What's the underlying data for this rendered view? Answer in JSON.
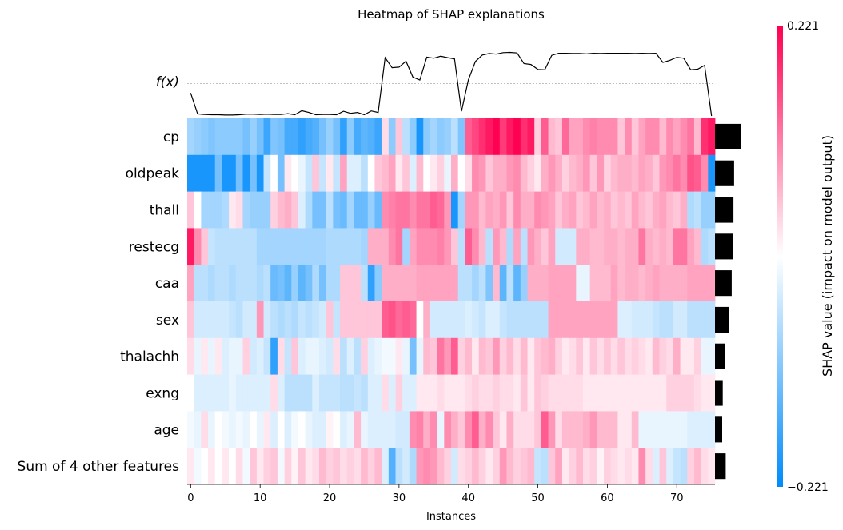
{
  "chart_data": {
    "type": "heatmap",
    "title": "Heatmap of SHAP explanations",
    "xlabel": "Instances",
    "fx_label": "f(x)",
    "colorbar_label": "SHAP value (impact on model output)",
    "colorbar_range": [
      -0.221,
      0.221
    ],
    "colorbar_max_label": "0.221",
    "colorbar_min_label": "−0.221",
    "colors": {
      "negative": "#008bfb",
      "positive": "#ff0051",
      "neutral": "#ffffff"
    },
    "n_instances": 76,
    "x_ticks": [
      0,
      10,
      20,
      30,
      40,
      50,
      60,
      70
    ],
    "features": [
      "cp",
      "oldpeak",
      "thall",
      "restecg",
      "caa",
      "sex",
      "thalachh",
      "exng",
      "age",
      "Sum of 4 other features"
    ],
    "feature_importance": [
      0.221,
      0.16,
      0.155,
      0.15,
      0.14,
      0.115,
      0.085,
      0.065,
      0.06,
      0.09
    ],
    "fx": [
      0.78,
      0.07,
      0.05,
      0.04,
      0.04,
      0.03,
      0.03,
      0.04,
      0.06,
      0.06,
      0.05,
      0.06,
      0.05,
      0.05,
      0.08,
      0.04,
      0.18,
      0.12,
      0.04,
      0.05,
      0.05,
      0.04,
      0.16,
      0.09,
      0.12,
      0.04,
      0.17,
      0.12,
      1.98,
      1.64,
      1.66,
      1.86,
      1.32,
      1.22,
      2.0,
      1.96,
      2.03,
      1.98,
      1.94,
      0.16,
      1.23,
      1.85,
      2.07,
      2.12,
      2.1,
      2.15,
      2.16,
      2.14,
      1.78,
      1.75,
      1.58,
      1.57,
      2.06,
      2.13,
      2.13,
      2.12,
      2.12,
      2.11,
      2.13,
      2.12,
      2.13,
      2.13,
      2.13,
      2.13,
      2.12,
      2.13,
      2.12,
      2.13,
      1.82,
      1.89,
      1.99,
      1.96,
      1.57,
      1.59,
      1.72,
      0.0
    ],
    "fx_ylim": [
      0,
      2.2
    ],
    "fx_reference": 1.1,
    "values": [
      [
        -0.08,
        -0.09,
        -0.1,
        -0.11,
        -0.1,
        -0.1,
        -0.1,
        -0.1,
        -0.12,
        -0.09,
        -0.12,
        -0.17,
        -0.11,
        -0.12,
        -0.16,
        -0.16,
        -0.18,
        -0.16,
        -0.15,
        -0.12,
        -0.09,
        -0.12,
        -0.18,
        -0.1,
        -0.16,
        -0.14,
        -0.15,
        -0.17,
        0.03,
        -0.1,
        0.05,
        -0.06,
        -0.1,
        -0.2,
        -0.1,
        -0.08,
        -0.1,
        -0.09,
        -0.06,
        -0.11,
        0.14,
        0.16,
        0.18,
        0.2,
        0.22,
        0.17,
        0.2,
        0.22,
        0.18,
        0.2,
        0.04,
        0.14,
        0.06,
        0.05,
        0.13,
        0.08,
        0.08,
        0.1,
        0.11,
        0.1,
        0.1,
        0.1,
        0.05,
        0.1,
        0.05,
        0.08,
        0.1,
        0.1,
        0.06,
        0.1,
        0.08,
        0.1,
        0.12,
        0.06,
        0.18,
        0.2
      ],
      [
        -0.2,
        -0.2,
        -0.2,
        -0.2,
        -0.12,
        -0.2,
        -0.2,
        -0.12,
        -0.2,
        -0.12,
        -0.2,
        -0.05,
        0.0,
        -0.12,
        0.02,
        0.0,
        -0.02,
        -0.05,
        0.05,
        -0.05,
        0.02,
        -0.05,
        0.08,
        -0.03,
        -0.03,
        -0.06,
        0.0,
        0.05,
        0.06,
        0.08,
        0.02,
        0.05,
        -0.03,
        0.06,
        0.0,
        0.02,
        0.04,
        -0.02,
        0.07,
        0.0,
        0.03,
        0.1,
        0.09,
        0.05,
        0.07,
        0.07,
        0.09,
        0.1,
        0.06,
        0.04,
        0.02,
        0.07,
        0.09,
        0.07,
        0.04,
        0.06,
        0.07,
        0.09,
        0.05,
        0.09,
        0.04,
        0.06,
        0.07,
        0.07,
        0.06,
        0.08,
        0.07,
        0.05,
        0.09,
        0.1,
        0.12,
        0.1,
        0.15,
        0.14,
        0.1,
        -0.2
      ],
      [
        0.05,
        0.0,
        -0.08,
        -0.08,
        -0.08,
        -0.07,
        0.02,
        0.03,
        -0.08,
        -0.09,
        -0.09,
        -0.09,
        0.04,
        0.06,
        0.07,
        0.05,
        -0.03,
        -0.07,
        -0.12,
        -0.12,
        -0.06,
        -0.12,
        -0.13,
        -0.08,
        -0.13,
        -0.13,
        -0.09,
        -0.13,
        0.1,
        0.11,
        0.12,
        0.12,
        0.1,
        0.12,
        0.12,
        0.14,
        0.13,
        0.09,
        -0.2,
        -0.08,
        0.09,
        0.09,
        0.06,
        0.08,
        0.07,
        0.09,
        0.05,
        0.1,
        0.07,
        0.07,
        0.1,
        0.09,
        0.08,
        0.05,
        0.07,
        0.08,
        0.05,
        0.06,
        0.08,
        0.06,
        0.07,
        0.05,
        0.06,
        0.05,
        0.08,
        0.06,
        0.05,
        0.07,
        0.08,
        0.06,
        0.05,
        0.07,
        -0.07,
        -0.06,
        -0.09,
        -0.09
      ],
      [
        0.2,
        0.1,
        0.05,
        -0.05,
        -0.06,
        -0.06,
        -0.06,
        -0.06,
        -0.06,
        -0.06,
        -0.08,
        -0.08,
        -0.08,
        -0.08,
        -0.08,
        -0.08,
        -0.08,
        -0.08,
        -0.08,
        -0.08,
        -0.07,
        -0.07,
        -0.07,
        -0.07,
        -0.07,
        -0.08,
        0.07,
        0.07,
        0.07,
        0.1,
        0.12,
        -0.08,
        0.08,
        0.1,
        0.1,
        0.1,
        0.11,
        0.09,
        0.05,
        -0.06,
        0.14,
        0.1,
        0.06,
        -0.06,
        0.09,
        0.06,
        -0.07,
        0.08,
        -0.06,
        0.09,
        0.07,
        0.05,
        0.08,
        -0.04,
        -0.04,
        -0.04,
        0.07,
        0.07,
        0.06,
        0.06,
        0.07,
        0.07,
        0.06,
        0.07,
        0.07,
        0.12,
        0.07,
        0.06,
        0.07,
        0.06,
        0.12,
        0.12,
        0.08,
        0.06,
        -0.07,
        -0.06
      ],
      [
        0.08,
        -0.06,
        -0.06,
        -0.07,
        -0.06,
        -0.06,
        -0.07,
        -0.06,
        -0.06,
        -0.06,
        -0.07,
        -0.06,
        -0.13,
        -0.12,
        -0.14,
        -0.09,
        -0.14,
        -0.12,
        -0.07,
        -0.12,
        -0.07,
        -0.07,
        0.05,
        0.05,
        0.05,
        -0.06,
        -0.18,
        -0.1,
        0.07,
        0.07,
        0.07,
        0.07,
        0.07,
        0.08,
        0.08,
        0.08,
        0.08,
        0.08,
        0.08,
        -0.06,
        -0.06,
        -0.08,
        -0.06,
        -0.11,
        0.06,
        -0.14,
        -0.06,
        -0.14,
        -0.09,
        0.07,
        0.07,
        0.07,
        0.08,
        0.08,
        0.08,
        0.08,
        -0.02,
        -0.02,
        0.06,
        0.06,
        0.06,
        0.08,
        0.06,
        0.07,
        0.07,
        0.06,
        0.07,
        0.08,
        0.07,
        0.07,
        0.07,
        0.07,
        0.08,
        0.08,
        0.08,
        0.08
      ],
      [
        0.05,
        -0.04,
        -0.04,
        -0.04,
        -0.04,
        -0.04,
        -0.05,
        -0.06,
        -0.04,
        -0.04,
        0.09,
        -0.04,
        -0.06,
        -0.07,
        -0.06,
        -0.07,
        -0.05,
        -0.06,
        -0.05,
        -0.04,
        0.05,
        -0.05,
        0.05,
        0.05,
        0.05,
        0.05,
        0.05,
        0.05,
        0.14,
        0.15,
        0.13,
        0.14,
        0.13,
        0.0,
        0.07,
        -0.04,
        -0.04,
        -0.04,
        -0.04,
        -0.04,
        -0.03,
        -0.04,
        -0.05,
        -0.03,
        -0.03,
        -0.05,
        -0.06,
        -0.06,
        -0.06,
        -0.06,
        -0.06,
        -0.06,
        0.08,
        0.08,
        0.08,
        0.08,
        0.08,
        0.08,
        0.08,
        0.08,
        0.08,
        0.08,
        -0.03,
        -0.03,
        -0.04,
        -0.04,
        -0.04,
        -0.05,
        -0.06,
        -0.06,
        -0.04,
        -0.04,
        -0.06,
        -0.06,
        -0.06,
        -0.06
      ],
      [
        0.03,
        -0.02,
        0.02,
        -0.02,
        0.02,
        -0.03,
        -0.02,
        -0.02,
        0.04,
        -0.04,
        -0.03,
        -0.05,
        -0.18,
        0.03,
        -0.05,
        0.05,
        -0.03,
        -0.02,
        -0.02,
        -0.03,
        -0.04,
        0.03,
        -0.06,
        -0.03,
        -0.06,
        0.04,
        -0.03,
        -0.02,
        -0.01,
        -0.01,
        0.02,
        -0.02,
        -0.12,
        -0.02,
        0.06,
        0.05,
        0.12,
        0.09,
        0.14,
        0.04,
        0.06,
        0.02,
        0.06,
        0.05,
        0.09,
        0.04,
        0.06,
        0.03,
        0.06,
        0.02,
        0.05,
        0.06,
        0.07,
        0.04,
        0.02,
        0.03,
        0.05,
        0.02,
        0.05,
        0.03,
        0.05,
        0.03,
        0.05,
        0.03,
        0.04,
        0.03,
        0.02,
        0.06,
        0.04,
        0.03,
        0.07,
        0.02,
        0.02,
        0.04,
        -0.02,
        -0.02
      ],
      [
        0.0,
        -0.03,
        -0.03,
        -0.03,
        -0.03,
        -0.03,
        -0.02,
        -0.03,
        -0.03,
        -0.03,
        -0.03,
        -0.03,
        0.03,
        -0.03,
        -0.06,
        -0.06,
        -0.06,
        -0.06,
        -0.03,
        -0.05,
        -0.05,
        -0.05,
        -0.06,
        -0.06,
        -0.05,
        -0.06,
        -0.03,
        -0.03,
        0.03,
        -0.03,
        0.04,
        -0.03,
        -0.03,
        0.02,
        0.02,
        0.02,
        0.03,
        0.02,
        0.02,
        0.02,
        0.03,
        0.04,
        0.03,
        0.03,
        0.04,
        0.03,
        0.03,
        0.02,
        0.05,
        0.02,
        0.05,
        0.04,
        0.03,
        0.03,
        0.03,
        0.03,
        0.03,
        0.02,
        0.02,
        0.02,
        0.02,
        0.02,
        0.02,
        0.02,
        0.02,
        0.02,
        0.02,
        0.02,
        0.02,
        0.04,
        0.04,
        0.04,
        0.04,
        0.03,
        0.02,
        0.02
      ],
      [
        -0.01,
        -0.02,
        0.03,
        -0.02,
        0.0,
        -0.01,
        -0.02,
        -0.01,
        -0.02,
        0.0,
        -0.02,
        0.02,
        -0.03,
        0.0,
        -0.03,
        -0.01,
        0.0,
        -0.02,
        -0.03,
        -0.03,
        0.01,
        0.0,
        -0.03,
        -0.02,
        0.06,
        -0.02,
        -0.03,
        -0.03,
        -0.03,
        -0.03,
        -0.04,
        -0.04,
        0.1,
        0.11,
        0.07,
        0.1,
        -0.02,
        0.1,
        0.07,
        0.05,
        0.1,
        0.14,
        0.07,
        0.1,
        0.05,
        0.02,
        0.07,
        0.03,
        0.03,
        0.03,
        0.05,
        0.14,
        0.09,
        0.03,
        0.06,
        0.06,
        0.06,
        0.07,
        0.09,
        0.06,
        0.06,
        0.06,
        0.02,
        0.02,
        0.06,
        -0.02,
        -0.02,
        -0.02,
        -0.02,
        -0.02,
        -0.02,
        -0.02,
        -0.03,
        -0.03,
        -0.03,
        -0.03
      ],
      [
        0.02,
        -0.01,
        0.0,
        0.02,
        0.0,
        0.02,
        0.0,
        0.03,
        -0.01,
        0.05,
        0.02,
        0.04,
        0.05,
        -0.01,
        0.04,
        0.01,
        0.05,
        0.02,
        0.03,
        0.06,
        0.04,
        0.05,
        0.03,
        0.04,
        0.03,
        0.06,
        0.04,
        0.06,
        -0.03,
        -0.15,
        -0.06,
        -0.04,
        -0.07,
        0.09,
        0.1,
        0.09,
        0.06,
        0.04,
        -0.04,
        0.03,
        0.04,
        0.06,
        0.04,
        0.02,
        0.04,
        0.09,
        0.06,
        0.04,
        0.05,
        0.06,
        -0.05,
        -0.06,
        0.05,
        0.08,
        0.02,
        0.04,
        0.06,
        0.03,
        0.04,
        0.01,
        0.04,
        0.03,
        0.02,
        0.03,
        0.02,
        0.1,
        0.03,
        -0.03,
        0.05,
        -0.03,
        -0.05,
        -0.06,
        0.04,
        0.06,
        0.03,
        0.02
      ]
    ]
  }
}
